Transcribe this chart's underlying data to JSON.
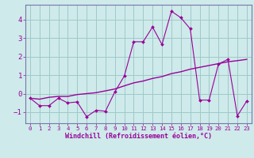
{
  "xlabel": "Windchill (Refroidissement éolien,°C)",
  "background_color": "#ceeaea",
  "grid_color": "#a0c8c8",
  "line_color": "#990099",
  "spine_color": "#7777aa",
  "xlim": [
    -0.5,
    23.5
  ],
  "ylim": [
    -1.6,
    4.8
  ],
  "yticks": [
    -1,
    0,
    1,
    2,
    3,
    4
  ],
  "xticks": [
    0,
    1,
    2,
    3,
    4,
    5,
    6,
    7,
    8,
    9,
    10,
    11,
    12,
    13,
    14,
    15,
    16,
    17,
    18,
    19,
    20,
    21,
    22,
    23
  ],
  "jagged_x": [
    0,
    1,
    2,
    3,
    4,
    5,
    6,
    7,
    8,
    9,
    10,
    11,
    12,
    13,
    14,
    15,
    16,
    17,
    18,
    19,
    20,
    21,
    22,
    23
  ],
  "jagged_y": [
    -0.25,
    -0.65,
    -0.65,
    -0.25,
    -0.5,
    -0.45,
    -1.25,
    -0.9,
    -0.95,
    0.1,
    0.95,
    2.8,
    2.8,
    3.6,
    2.65,
    4.45,
    4.1,
    3.5,
    -0.35,
    -0.35,
    1.6,
    1.85,
    -1.2,
    -0.4
  ],
  "trend_x": [
    0,
    1,
    2,
    3,
    4,
    5,
    6,
    7,
    8,
    9,
    10,
    11,
    12,
    13,
    14,
    15,
    16,
    17,
    18,
    19,
    20,
    21,
    22,
    23
  ],
  "trend_y": [
    -0.25,
    -0.3,
    -0.2,
    -0.15,
    -0.15,
    -0.05,
    0.0,
    0.05,
    0.15,
    0.25,
    0.42,
    0.58,
    0.68,
    0.82,
    0.92,
    1.08,
    1.18,
    1.32,
    1.42,
    1.52,
    1.62,
    1.72,
    1.78,
    1.85
  ],
  "xlabel_fontsize": 6.0,
  "ylabel_fontsize": 6.5,
  "tick_fontsize": 6.0
}
